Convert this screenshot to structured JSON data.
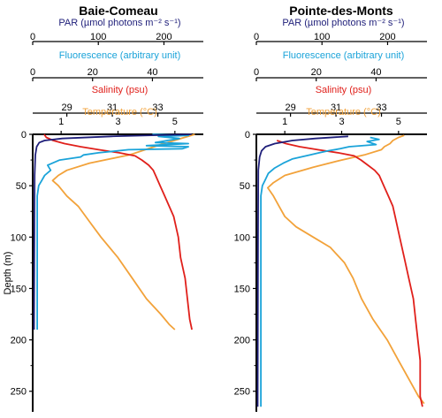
{
  "chart_data": [
    {
      "type": "line",
      "title": "Baie-Comeau",
      "ylabel": "Depth (m)",
      "ylim": [
        0,
        270
      ],
      "yticks": [
        0,
        50,
        100,
        150,
        200,
        250
      ],
      "y_inverted": true,
      "axes": [
        {
          "label": "PAR (µmol photons m⁻² s⁻¹)",
          "color": "#1f1f7a",
          "range": [
            0,
            260
          ],
          "ticks": [
            0,
            100,
            200
          ]
        },
        {
          "label": "Fluorescence (arbitrary unit)",
          "color": "#1aa3d9",
          "range": [
            0,
            57
          ],
          "ticks": [
            0,
            20,
            40
          ]
        },
        {
          "label": "Salinity (psu)",
          "color": "#e0201b",
          "range": [
            27.5,
            35
          ],
          "ticks": [
            29,
            31,
            33
          ]
        },
        {
          "label": "Temperature (°C)",
          "color": "#f2a23a",
          "range": [
            0,
            6
          ],
          "ticks": [
            1,
            3,
            5
          ]
        }
      ],
      "series": [
        {
          "name": "PAR",
          "color": "#1f1f7a",
          "axis": 0,
          "values": [
            [
              242,
              0
            ],
            [
              120,
              2
            ],
            [
              45,
              4
            ],
            [
              18,
              6
            ],
            [
              10,
              8
            ],
            [
              6,
              12
            ],
            [
              4,
              20
            ],
            [
              3,
              40
            ],
            [
              2.5,
              100
            ],
            [
              2,
              190
            ]
          ]
        },
        {
          "name": "Fluorescence",
          "color": "#1aa3d9",
          "axis": 1,
          "values": [
            [
              40,
              0
            ],
            [
              52,
              1
            ],
            [
              42,
              2
            ],
            [
              49,
              4
            ],
            [
              45,
              6
            ],
            [
              41,
              8
            ],
            [
              52,
              9
            ],
            [
              38,
              11
            ],
            [
              52,
              12
            ],
            [
              50,
              14
            ],
            [
              32,
              15
            ],
            [
              22,
              18
            ],
            [
              17,
              20
            ],
            [
              16,
              22
            ],
            [
              9,
              25
            ],
            [
              5,
              30
            ],
            [
              6,
              35
            ],
            [
              4,
              40
            ],
            [
              3,
              45
            ],
            [
              2,
              50
            ],
            [
              1.5,
              60
            ],
            [
              1.5,
              100
            ],
            [
              1.5,
              190
            ]
          ]
        },
        {
          "name": "Salinity",
          "color": "#e0201b",
          "axis": 2,
          "values": [
            [
              28.0,
              0
            ],
            [
              28.1,
              3
            ],
            [
              28.4,
              6
            ],
            [
              28.9,
              9
            ],
            [
              29.6,
              12
            ],
            [
              30.4,
              15
            ],
            [
              31.3,
              18
            ],
            [
              32.0,
              21
            ],
            [
              32.3,
              25
            ],
            [
              32.6,
              30
            ],
            [
              32.8,
              35
            ],
            [
              32.9,
              40
            ],
            [
              33.1,
              50
            ],
            [
              33.3,
              60
            ],
            [
              33.5,
              70
            ],
            [
              33.7,
              80
            ],
            [
              33.9,
              100
            ],
            [
              34.0,
              120
            ],
            [
              34.2,
              140
            ],
            [
              34.3,
              160
            ],
            [
              34.4,
              180
            ],
            [
              34.5,
              190
            ]
          ]
        },
        {
          "name": "Temperature",
          "color": "#f2a23a",
          "axis": 3,
          "values": [
            [
              5.7,
              0
            ],
            [
              4.5,
              10
            ],
            [
              3.4,
              20
            ],
            [
              2.0,
              28
            ],
            [
              1.2,
              35
            ],
            [
              0.9,
              40
            ],
            [
              0.7,
              45
            ],
            [
              0.9,
              50
            ],
            [
              1.2,
              60
            ],
            [
              1.6,
              70
            ],
            [
              2.0,
              85
            ],
            [
              2.4,
              100
            ],
            [
              3.0,
              120
            ],
            [
              3.5,
              140
            ],
            [
              4.0,
              160
            ],
            [
              4.5,
              175
            ],
            [
              4.8,
              185
            ],
            [
              5.0,
              190
            ]
          ]
        }
      ]
    },
    {
      "type": "line",
      "title": "Pointe-des-Monts",
      "ylabel": "Depth (m)",
      "ylim": [
        0,
        270
      ],
      "yticks": [
        0,
        50,
        100,
        150,
        200,
        250
      ],
      "y_inverted": true,
      "axes": [
        {
          "label": "PAR (µmol photons m⁻² s⁻¹)",
          "color": "#1f1f7a",
          "range": [
            0,
            260
          ],
          "ticks": [
            0,
            100,
            200
          ]
        },
        {
          "label": "Fluorescence (arbitrary unit)",
          "color": "#1aa3d9",
          "range": [
            0,
            57
          ],
          "ticks": [
            0,
            20,
            40
          ]
        },
        {
          "label": "Salinity (psu)",
          "color": "#e0201b",
          "range": [
            27.5,
            35
          ],
          "ticks": [
            29,
            31,
            33
          ]
        },
        {
          "label": "Temperature (°C)",
          "color": "#f2a23a",
          "range": [
            0,
            6
          ],
          "ticks": [
            1,
            3,
            5
          ]
        }
      ],
      "series": [
        {
          "name": "PAR",
          "color": "#1f1f7a",
          "axis": 0,
          "values": [
            [
              140,
              2
            ],
            [
              90,
              4
            ],
            [
              55,
              6
            ],
            [
              28,
              9
            ],
            [
              14,
              12
            ],
            [
              8,
              16
            ],
            [
              5,
              22
            ],
            [
              3,
              35
            ],
            [
              2.5,
              100
            ],
            [
              2,
              265
            ]
          ]
        },
        {
          "name": "Fluorescence",
          "color": "#1aa3d9",
          "axis": 1,
          "values": [
            [
              38,
              3
            ],
            [
              41,
              5
            ],
            [
              37,
              7
            ],
            [
              40,
              10
            ],
            [
              31,
              12
            ],
            [
              28,
              14
            ],
            [
              24,
              16
            ],
            [
              21,
              18
            ],
            [
              18,
              20
            ],
            [
              12,
              24
            ],
            [
              9,
              28
            ],
            [
              6,
              33
            ],
            [
              4,
              38
            ],
            [
              3,
              44
            ],
            [
              2,
              50
            ],
            [
              1.5,
              60
            ],
            [
              1.5,
              100
            ],
            [
              1.5,
              265
            ]
          ]
        },
        {
          "name": "Salinity",
          "color": "#e0201b",
          "axis": 2,
          "values": [
            [
              28.4,
              6
            ],
            [
              28.8,
              9
            ],
            [
              29.4,
              12
            ],
            [
              30.2,
              15
            ],
            [
              31.1,
              18
            ],
            [
              31.8,
              21
            ],
            [
              32.1,
              25
            ],
            [
              32.4,
              30
            ],
            [
              32.7,
              35
            ],
            [
              32.9,
              40
            ],
            [
              33.1,
              50
            ],
            [
              33.3,
              60
            ],
            [
              33.5,
              70
            ],
            [
              33.6,
              80
            ],
            [
              33.8,
              100
            ],
            [
              34.0,
              120
            ],
            [
              34.2,
              140
            ],
            [
              34.4,
              160
            ],
            [
              34.5,
              180
            ],
            [
              34.6,
              200
            ],
            [
              34.7,
              220
            ],
            [
              34.7,
              240
            ],
            [
              34.7,
              255
            ],
            [
              34.8,
              265
            ]
          ]
        },
        {
          "name": "Temperature",
          "color": "#f2a23a",
          "axis": 3,
          "values": [
            [
              5.2,
              1
            ],
            [
              5.0,
              3
            ],
            [
              4.8,
              6
            ],
            [
              4.7,
              9
            ],
            [
              4.5,
              12
            ],
            [
              4.4,
              15
            ],
            [
              3.8,
              20
            ],
            [
              3.0,
              25
            ],
            [
              2.0,
              32
            ],
            [
              1.0,
              40
            ],
            [
              0.6,
              47
            ],
            [
              0.4,
              52
            ],
            [
              0.6,
              60
            ],
            [
              0.8,
              70
            ],
            [
              1.0,
              80
            ],
            [
              1.4,
              90
            ],
            [
              2.0,
              100
            ],
            [
              2.6,
              110
            ],
            [
              3.1,
              125
            ],
            [
              3.4,
              140
            ],
            [
              3.7,
              160
            ],
            [
              4.1,
              180
            ],
            [
              4.6,
              200
            ],
            [
              5.0,
              220
            ],
            [
              5.4,
              240
            ],
            [
              5.7,
              255
            ],
            [
              5.9,
              262
            ]
          ]
        }
      ]
    }
  ]
}
